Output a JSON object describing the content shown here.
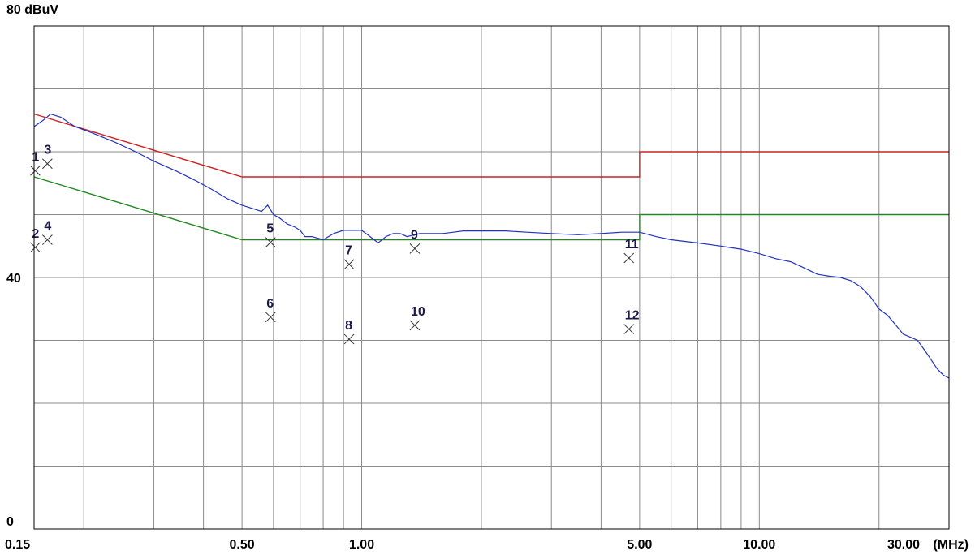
{
  "chart_data": {
    "type": "line",
    "ylabel_top": "80 dBuV",
    "y_mid_label": "40",
    "y_bottom_label": "0",
    "x_unit": "(MHz)",
    "x_scale": "log",
    "xlim": [
      0.15,
      30.0
    ],
    "ylim": [
      0,
      80
    ],
    "grid": true,
    "x_tick_labels": [
      "0.15",
      "0.50",
      "1.00",
      "5.00",
      "10.00",
      "30.00"
    ],
    "x_tick_values": [
      0.15,
      0.5,
      1.0,
      5.0,
      10.0,
      30.0
    ],
    "colors": {
      "quasi_peak_limit": "#cc2222",
      "average_limit": "#228822",
      "trace": "#2233bb",
      "grid": "#8a8a8a",
      "marker": "#333333"
    },
    "series": [
      {
        "key": "quasi_peak_limit",
        "x": [
          0.15,
          0.5,
          0.5,
          5.0,
          5.0,
          30.0
        ],
        "values": [
          66,
          56,
          56,
          56,
          60,
          60
        ]
      },
      {
        "key": "average_limit",
        "x": [
          0.15,
          0.5,
          0.5,
          5.0,
          5.0,
          30.0
        ],
        "values": [
          56,
          46,
          46,
          46,
          50,
          50
        ]
      },
      {
        "key": "trace",
        "x": [
          0.15,
          0.158,
          0.165,
          0.175,
          0.19,
          0.21,
          0.24,
          0.27,
          0.3,
          0.34,
          0.38,
          0.42,
          0.46,
          0.5,
          0.53,
          0.56,
          0.58,
          0.6,
          0.62,
          0.65,
          0.68,
          0.7,
          0.72,
          0.75,
          0.8,
          0.85,
          0.9,
          0.95,
          1.0,
          1.05,
          1.1,
          1.15,
          1.2,
          1.25,
          1.3,
          1.4,
          1.5,
          1.6,
          1.7,
          1.8,
          2.0,
          2.3,
          2.6,
          3.0,
          3.5,
          4.0,
          4.5,
          5.0,
          5.5,
          6.0,
          7.0,
          8.0,
          9.0,
          10.0,
          11.0,
          12.0,
          13.0,
          14.0,
          15.0,
          16.0,
          17.0,
          18.0,
          19.0,
          20.0,
          21.0,
          22.0,
          23.0,
          24.0,
          25.0,
          26.0,
          27.0,
          28.0,
          29.0,
          30.0
        ],
        "values": [
          64,
          65,
          66,
          65.5,
          64,
          63,
          61.5,
          60,
          58.5,
          57,
          55.5,
          54,
          52.5,
          51.5,
          51,
          50.5,
          51.5,
          50,
          49.5,
          48.5,
          48,
          47.5,
          46.5,
          46.5,
          46,
          47,
          47.5,
          47.5,
          47.5,
          46.5,
          45.5,
          46.5,
          47,
          47,
          46.5,
          47,
          47,
          47,
          47.2,
          47.4,
          47.4,
          47.4,
          47.2,
          47,
          46.8,
          47,
          47.2,
          47.2,
          46.5,
          46,
          45.5,
          45,
          44.5,
          43.8,
          43,
          42.5,
          41.5,
          40.5,
          40.2,
          40,
          39.5,
          38.5,
          37,
          35,
          34,
          32.5,
          31,
          30.5,
          30,
          28.5,
          27,
          25.5,
          24.5,
          24
        ]
      }
    ],
    "markers": [
      {
        "label": "1",
        "x": 0.151,
        "y": 57.0
      },
      {
        "label": "2",
        "x": 0.151,
        "y": 44.8
      },
      {
        "label": "3",
        "x": 0.162,
        "y": 58.1
      },
      {
        "label": "4",
        "x": 0.162,
        "y": 46.0
      },
      {
        "label": "5",
        "x": 0.59,
        "y": 45.6
      },
      {
        "label": "6",
        "x": 0.59,
        "y": 33.7
      },
      {
        "label": "7",
        "x": 0.93,
        "y": 42.1
      },
      {
        "label": "8",
        "x": 0.93,
        "y": 30.2
      },
      {
        "label": "9",
        "x": 1.36,
        "y": 44.6
      },
      {
        "label": "10",
        "x": 1.36,
        "y": 32.4
      },
      {
        "label": "11",
        "x": 4.7,
        "y": 43.1
      },
      {
        "label": "12",
        "x": 4.7,
        "y": 31.8
      }
    ]
  }
}
